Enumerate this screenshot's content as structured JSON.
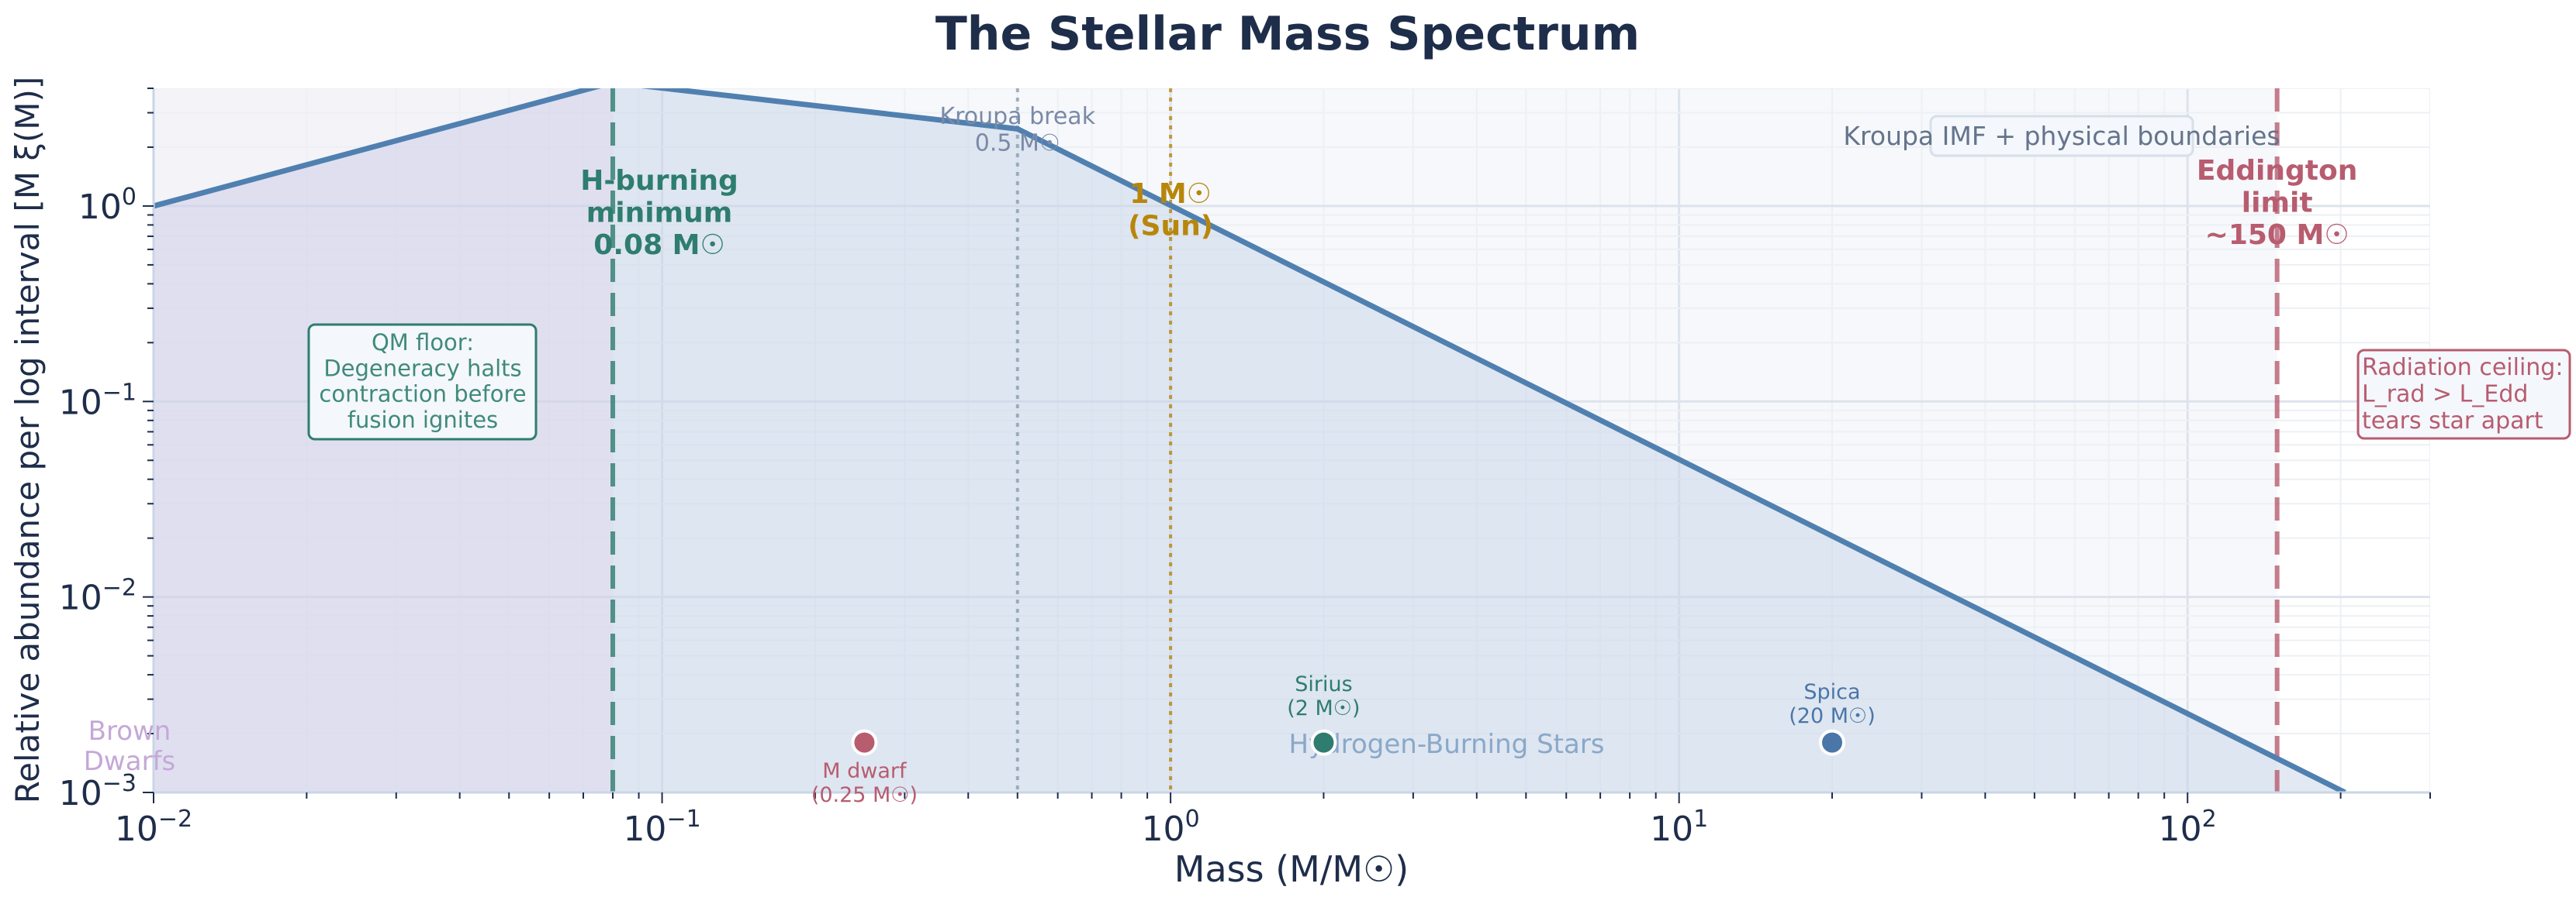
{
  "chart_data": {
    "type": "line",
    "title": "The Stellar Mass Spectrum",
    "xlabel": "Mass (M/M☉)",
    "ylabel": "Relative abundance per log interval [M ξ(M)]",
    "xscale": "log",
    "yscale": "log",
    "xlim": [
      0.01,
      300
    ],
    "ylim": [
      0.001,
      4
    ],
    "grid": true,
    "x_ticks": [
      {
        "v": 0.01,
        "b": "10",
        "e": "−2"
      },
      {
        "v": 0.1,
        "b": "10",
        "e": "−1"
      },
      {
        "v": 1,
        "b": "10",
        "e": "0"
      },
      {
        "v": 10,
        "b": "10",
        "e": "1"
      },
      {
        "v": 100,
        "b": "10",
        "e": "2"
      }
    ],
    "y_ticks": [
      {
        "v": 0.001,
        "b": "10",
        "e": "−3"
      },
      {
        "v": 0.01,
        "b": "10",
        "e": "−2"
      },
      {
        "v": 0.1,
        "b": "10",
        "e": "−1"
      },
      {
        "v": 1,
        "b": "10",
        "e": "0"
      }
    ],
    "series": [
      {
        "x": [
          0.01,
          0.08,
          0.5,
          1,
          10,
          100,
          204
        ],
        "y": [
          1.0,
          4.29,
          2.48,
          1.007,
          0.0505,
          0.00253,
          0.001
        ],
        "color": "#5080b0"
      }
    ],
    "regions": [
      {
        "label_lines": [
          "Brown",
          "Dwarfs"
        ],
        "x": [
          0.01,
          0.08
        ],
        "color": "#c4a8d8"
      },
      {
        "label": "Hydrogen-Burning Stars",
        "x": [
          0.08,
          150
        ],
        "color": "#8aa8c8"
      }
    ],
    "vlines": [
      {
        "x": 0.08,
        "color": "#2e7d6e",
        "style": "dashed",
        "label_lines": [
          "H-burning",
          "minimum",
          "0.08 M☉"
        ]
      },
      {
        "x": 0.5,
        "color": "#8a9fb0",
        "style": "dotted",
        "label_lines": [
          "Kroupa break",
          "0.5 M☉"
        ]
      },
      {
        "x": 1,
        "color": "#b8860b",
        "style": "dotted",
        "label_lines": [
          "1 M☉",
          "(Sun)"
        ]
      },
      {
        "x": 150,
        "color": "#b85c70",
        "style": "dashed",
        "label_lines": [
          "Eddington",
          "limit",
          "~150 M☉"
        ]
      }
    ],
    "points": [
      {
        "x": 0.25,
        "y": 0.0018,
        "color": "#b85c70",
        "label_lines": [
          "M dwarf",
          "(0.25 M☉)"
        ]
      },
      {
        "x": 2,
        "y": 0.0018,
        "color": "#2e7d6e",
        "label_lines": [
          "Sirius",
          "(2 M☉)"
        ]
      },
      {
        "x": 20,
        "y": 0.0018,
        "color": "#4a76a8",
        "label_lines": [
          "Spica",
          "(20 M☉)"
        ]
      }
    ],
    "annotations": [
      {
        "lines": [
          "QM floor:",
          "Degeneracy halts",
          "contraction before",
          "fusion ignites"
        ],
        "color": "#2e7d6e"
      },
      {
        "lines": [
          "Radiation ceiling:",
          "L_rad > L_Edd",
          "tears star apart"
        ],
        "color": "#b85c70"
      },
      {
        "lines": [
          "Kroupa IMF + physical boundaries"
        ],
        "color": "#64748b"
      }
    ]
  }
}
